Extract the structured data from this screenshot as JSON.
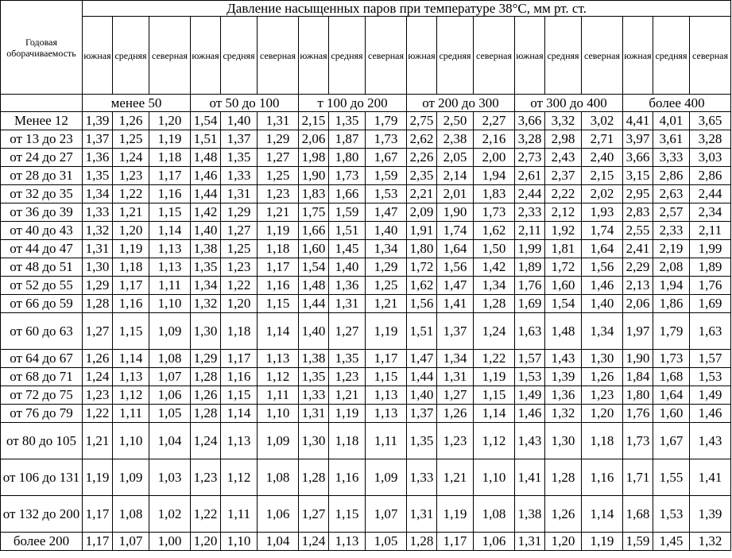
{
  "table": {
    "corner_label": "Годовая оборачиваемость",
    "title": "Давление насыщенных паров при температуре 38°С, мм рт. ст.",
    "sub_headers": [
      "южная",
      "средняя",
      "северная",
      "южная",
      "средняя",
      "северная",
      "южная",
      "средняя",
      "северная",
      "южная",
      "средняя",
      "северная",
      "южная",
      "средняя",
      "северная",
      "южная",
      "средняя",
      "северная"
    ],
    "groups": [
      "менее 50",
      "от 50 до 100",
      "т 100 до 200",
      "от 200 до 300",
      "от 300 до 400",
      "более 400"
    ],
    "rows": [
      {
        "label": "Менее 12",
        "tall": false,
        "values": [
          "1,39",
          "1,26",
          "1,20",
          "1,54",
          "1,40",
          "1,31",
          "2,15",
          "1,35",
          "1,79",
          "2,75",
          "2,50",
          "2,27",
          "3,66",
          "3,32",
          "3,02",
          "4,41",
          "4,01",
          "3,65"
        ]
      },
      {
        "label": "от 13 до 23",
        "tall": false,
        "values": [
          "1,37",
          "1,25",
          "1,19",
          "1,51",
          "1,37",
          "1,29",
          "2,06",
          "1,87",
          "1,73",
          "2,62",
          "2,38",
          "2,16",
          "3,28",
          "2,98",
          "2,71",
          "3,97",
          "3,61",
          "3,28"
        ]
      },
      {
        "label": "от 24 до 27",
        "tall": false,
        "values": [
          "1,36",
          "1,24",
          "1,18",
          "1,48",
          "1,35",
          "1,27",
          "1,98",
          "1,80",
          "1,67",
          "2,26",
          "2,05",
          "2,00",
          "2,73",
          "2,43",
          "2,40",
          "3,66",
          "3,33",
          "3,03"
        ]
      },
      {
        "label": "от 28 до 31",
        "tall": false,
        "values": [
          "1,35",
          "1,23",
          "1,17",
          "1,46",
          "1,33",
          "1,25",
          "1,90",
          "1,73",
          "1,59",
          "2,35",
          "2,14",
          "1,94",
          "2,61",
          "2,37",
          "2,15",
          "3,15",
          "2,86",
          "2,86"
        ]
      },
      {
        "label": "от 32 до 35",
        "tall": false,
        "values": [
          "1,34",
          "1,22",
          "1,16",
          "1,44",
          "1,31",
          "1,23",
          "1,83",
          "1,66",
          "1,53",
          "2,21",
          "2,01",
          "1,83",
          "2,44",
          "2,22",
          "2,02",
          "2,95",
          "2,63",
          "2,44"
        ]
      },
      {
        "label": "от 36 до 39",
        "tall": false,
        "values": [
          "1,33",
          "1,21",
          "1,15",
          "1,42",
          "1,29",
          "1,21",
          "1,75",
          "1,59",
          "1,47",
          "2,09",
          "1,90",
          "1,73",
          "2,33",
          "2,12",
          "1,93",
          "2,83",
          "2,57",
          "2,34"
        ]
      },
      {
        "label": "от 40 до 43",
        "tall": false,
        "values": [
          "1,32",
          "1,20",
          "1,14",
          "1,40",
          "1,27",
          "1,19",
          "1,66",
          "1,51",
          "1,40",
          "1,91",
          "1,74",
          "1,62",
          "2,11",
          "1,92",
          "1,74",
          "2,55",
          "2,33",
          "2,11"
        ]
      },
      {
        "label": "от 44 до 47",
        "tall": false,
        "values": [
          "1,31",
          "1,19",
          "1,13",
          "1,38",
          "1,25",
          "1,18",
          "1,60",
          "1,45",
          "1,34",
          "1,80",
          "1,64",
          "1,50",
          "1,99",
          "1,81",
          "1,64",
          "2,41",
          "2,19",
          "1,99"
        ]
      },
      {
        "label": "от 48 до 51",
        "tall": false,
        "values": [
          "1,30",
          "1,18",
          "1,13",
          "1,35",
          "1,23",
          "1,17",
          "1,54",
          "1,40",
          "1,29",
          "1,72",
          "1,56",
          "1,42",
          "1,89",
          "1,72",
          "1,56",
          "2,29",
          "2,08",
          "1,89"
        ]
      },
      {
        "label": "от 52 до 55",
        "tall": false,
        "values": [
          "1,29",
          "1,17",
          "1,11",
          "1,34",
          "1,22",
          "1,16",
          "1,48",
          "1,36",
          "1,25",
          "1,62",
          "1,47",
          "1,34",
          "1,76",
          "1,60",
          "1,46",
          "2,13",
          "1,94",
          "1,76"
        ]
      },
      {
        "label": "от 66 до 59",
        "tall": false,
        "values": [
          "1,28",
          "1,16",
          "1,10",
          "1,32",
          "1,20",
          "1,15",
          "1,44",
          "1,31",
          "1,21",
          "1,56",
          "1,41",
          "1,28",
          "1,69",
          "1,54",
          "1,40",
          "2,06",
          "1,86",
          "1,69"
        ]
      },
      {
        "label": "от 60 до 63",
        "tall": true,
        "values": [
          "1,27",
          "1,15",
          "1,09",
          "1,30",
          "1,18",
          "1,14",
          "1,40",
          "1,27",
          "1,19",
          "1,51",
          "1,37",
          "1,24",
          "1,63",
          "1,48",
          "1,34",
          "1,97",
          "1,79",
          "1,63"
        ]
      },
      {
        "label": "от 64 до 67",
        "tall": false,
        "values": [
          "1,26",
          "1,14",
          "1,08",
          "1,29",
          "1,17",
          "1,13",
          "1,38",
          "1,35",
          "1,17",
          "1,47",
          "1,34",
          "1,22",
          "1,57",
          "1,43",
          "1,30",
          "1,90",
          "1,73",
          "1,57"
        ]
      },
      {
        "label": "от 68 до 71",
        "tall": false,
        "values": [
          "1,24",
          "1,13",
          "1,07",
          "1,28",
          "1,16",
          "1,12",
          "1,35",
          "1,23",
          "1,15",
          "1,44",
          "1,31",
          "1,19",
          "1,53",
          "1,39",
          "1,26",
          "1,84",
          "1,68",
          "1,53"
        ]
      },
      {
        "label": "от 72 до 75",
        "tall": false,
        "values": [
          "1,23",
          "1,12",
          "1,06",
          "1,26",
          "1,15",
          "1,11",
          "1,33",
          "1,21",
          "1,13",
          "1,40",
          "1,27",
          "1,15",
          "1,49",
          "1,36",
          "1,23",
          "1,80",
          "1,64",
          "1,49"
        ]
      },
      {
        "label": "от 76 до 79",
        "tall": false,
        "values": [
          "1,22",
          "1,11",
          "1,05",
          "1,28",
          "1,14",
          "1,10",
          "1,31",
          "1,19",
          "1,13",
          "1,37",
          "1,26",
          "1,14",
          "1,46",
          "1,32",
          "1,20",
          "1,76",
          "1,60",
          "1,46"
        ]
      },
      {
        "label": "от 80 до 105",
        "tall": true,
        "values": [
          "1,21",
          "1,10",
          "1,04",
          "1,24",
          "1,13",
          "1,09",
          "1,30",
          "1,18",
          "1,11",
          "1,35",
          "1,23",
          "1,12",
          "1,43",
          "1,30",
          "1,18",
          "1,73",
          "1,67",
          "1,43"
        ]
      },
      {
        "label": "от 106 до 131",
        "tall": true,
        "values": [
          "1,19",
          "1,09",
          "1,03",
          "1,23",
          "1,12",
          "1,08",
          "1,28",
          "1,16",
          "1,09",
          "1,33",
          "1,21",
          "1,10",
          "1,41",
          "1,28",
          "1,16",
          "1,71",
          "1,55",
          "1,41"
        ]
      },
      {
        "label": "от 132 до 200",
        "tall": true,
        "values": [
          "1,17",
          "1,08",
          "1,02",
          "1,22",
          "1,11",
          "1,06",
          "1,27",
          "1,15",
          "1,07",
          "1,31",
          "1,19",
          "1,08",
          "1,38",
          "1,26",
          "1,14",
          "1,68",
          "1,53",
          "1,39"
        ]
      },
      {
        "label": "более 200",
        "tall": false,
        "values": [
          "1,17",
          "1,07",
          "1,00",
          "1,20",
          "1,10",
          "1,04",
          "1,24",
          "1,13",
          "1,05",
          "1,28",
          "1,17",
          "1,06",
          "1,31",
          "1,20",
          "1,19",
          "1,59",
          "1,45",
          "1,32"
        ]
      }
    ]
  }
}
